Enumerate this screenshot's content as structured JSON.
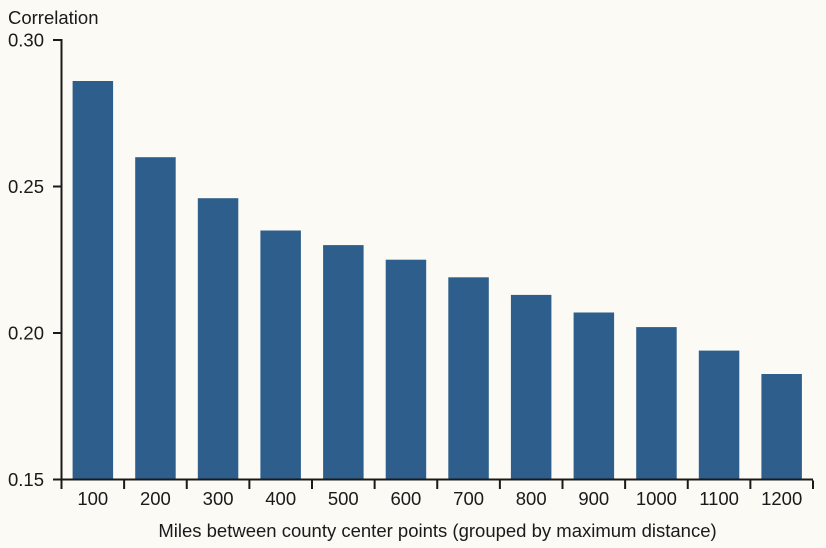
{
  "figure": {
    "background_color": "#FCFAF4"
  },
  "chart_data": {
    "type": "bar",
    "title": "",
    "ylabel": "Correlation",
    "xlabel": "Miles between county center points (grouped by maximum distance)",
    "categories": [
      "100",
      "200",
      "300",
      "400",
      "500",
      "600",
      "700",
      "800",
      "900",
      "1000",
      "1100",
      "1200"
    ],
    "values": [
      0.286,
      0.26,
      0.246,
      0.235,
      0.23,
      0.225,
      0.219,
      0.213,
      0.207,
      0.202,
      0.194,
      0.186
    ],
    "ylim": [
      0.15,
      0.3
    ],
    "ytick_values": [
      0.15,
      0.2,
      0.25,
      0.3
    ],
    "ytick_labels": [
      "0.15",
      "0.20",
      "0.25",
      "0.30"
    ],
    "grid": false,
    "legend": null,
    "bar_color": "#2E5F8C",
    "axis_color": "#1A1A1A",
    "text_color": "#1A1A1A"
  }
}
